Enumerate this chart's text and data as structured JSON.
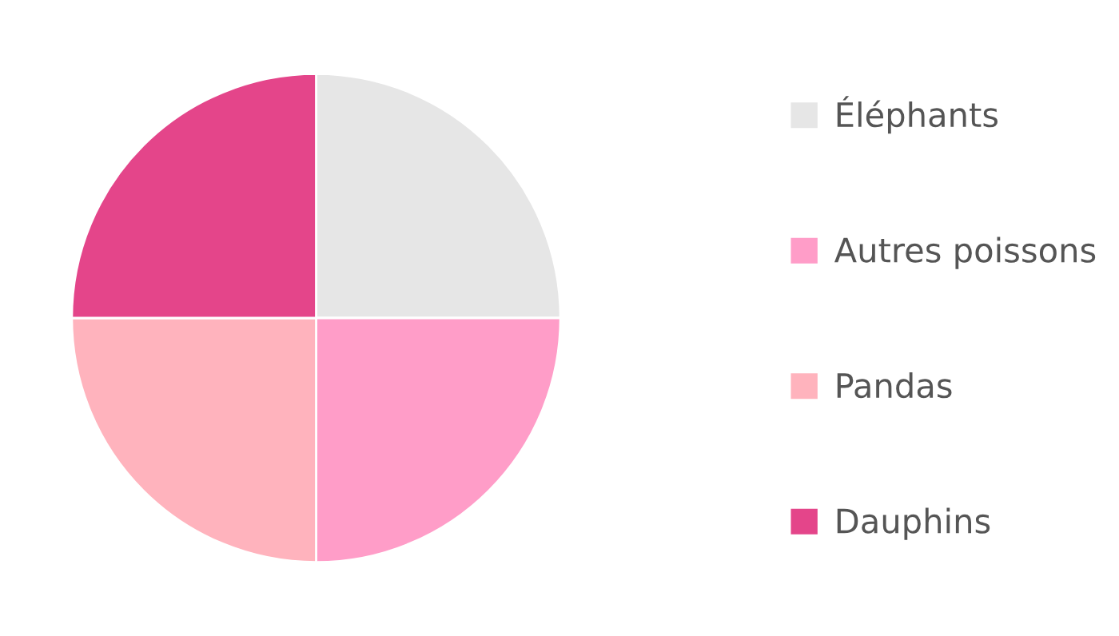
{
  "chart_data": {
    "type": "pie",
    "categories": [
      "Éléphants",
      "Autres poissons",
      "Pandas",
      "Dauphins"
    ],
    "values": [
      25,
      25,
      25,
      25
    ],
    "colors": [
      "#e6e6e6",
      "#ff9dc8",
      "#ffb3bd",
      "#e4458a"
    ],
    "legend": "right"
  }
}
